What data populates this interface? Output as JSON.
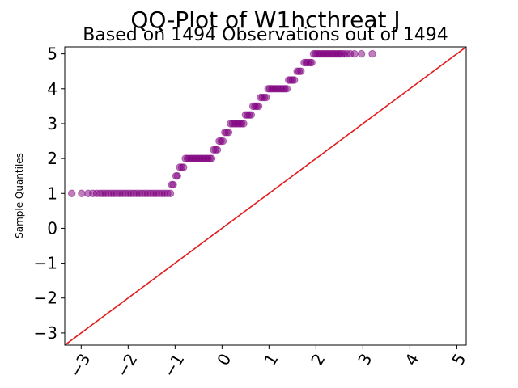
{
  "chart_data": {
    "type": "scatter",
    "title": "QQ-Plot of W1hcthreat J",
    "subtitle": "Based on 1494 Observations out of 1494",
    "xlabel": "",
    "ylabel": "Sample Quantiles",
    "xlim": [
      -3.35,
      5.2
    ],
    "ylim": [
      -3.35,
      5.2
    ],
    "xticks": [
      -3,
      -2,
      -1,
      0,
      1,
      2,
      3,
      4,
      5
    ],
    "xtick_labels": [
      "−3",
      "−2",
      "−1",
      "0",
      "1",
      "2",
      "3",
      "4",
      "5"
    ],
    "yticks": [
      -3,
      -2,
      -1,
      0,
      1,
      2,
      3,
      4,
      5
    ],
    "ytick_labels": [
      "−3",
      "−2",
      "−1",
      "0",
      "1",
      "2",
      "3",
      "4",
      "5"
    ],
    "grid": false,
    "marker_color": "#800080",
    "reference_line": {
      "x": [
        -3.35,
        5.2
      ],
      "y": [
        -3.35,
        5.2
      ],
      "color": "#e41a1c"
    },
    "points_x": [
      -3.2,
      -2.99,
      -2.85,
      -2.75,
      -2.67,
      -2.6,
      -2.54,
      -2.48,
      -2.42,
      -2.36,
      -2.3,
      -2.24,
      -2.18,
      -2.12,
      -2.06,
      -2.0,
      -1.94,
      -1.88,
      -1.82,
      -1.76,
      -1.7,
      -1.64,
      -1.58,
      -1.52,
      -1.46,
      -1.4,
      -1.34,
      -1.28,
      -1.22,
      -1.16,
      -1.1,
      -1.07,
      -1.04,
      -0.98,
      -0.95,
      -0.9,
      -0.86,
      -0.82,
      -0.78,
      -0.74,
      -0.7,
      -0.66,
      -0.62,
      -0.58,
      -0.54,
      -0.5,
      -0.46,
      -0.42,
      -0.38,
      -0.34,
      -0.3,
      -0.26,
      -0.22,
      -0.18,
      -0.14,
      -0.1,
      -0.06,
      -0.02,
      0.02,
      0.06,
      0.1,
      0.14,
      0.18,
      0.22,
      0.26,
      0.3,
      0.34,
      0.38,
      0.42,
      0.46,
      0.5,
      0.54,
      0.58,
      0.62,
      0.66,
      0.7,
      0.74,
      0.78,
      0.82,
      0.86,
      0.9,
      0.94,
      0.98,
      1.02,
      1.06,
      1.1,
      1.14,
      1.18,
      1.22,
      1.26,
      1.3,
      1.34,
      1.38,
      1.42,
      1.46,
      1.5,
      1.54,
      1.6,
      1.64,
      1.68,
      1.75,
      1.79,
      1.83,
      1.88,
      1.91,
      1.95,
      1.99,
      2.03,
      2.07,
      2.11,
      2.15,
      2.19,
      2.23,
      2.27,
      2.31,
      2.35,
      2.39,
      2.43,
      2.47,
      2.51,
      2.55,
      2.6,
      2.66,
      2.73,
      2.82,
      2.97,
      3.2
    ],
    "points_y": [
      1,
      1,
      1,
      1,
      1,
      1,
      1,
      1,
      1,
      1,
      1,
      1,
      1,
      1,
      1,
      1,
      1,
      1,
      1,
      1,
      1,
      1,
      1,
      1,
      1,
      1,
      1,
      1,
      1,
      1,
      1,
      1.25,
      1.25,
      1.5,
      1.5,
      1.75,
      1.75,
      1.75,
      2,
      2,
      2,
      2,
      2,
      2,
      2,
      2,
      2,
      2,
      2,
      2,
      2,
      2,
      2,
      2.25,
      2.25,
      2.25,
      2.5,
      2.5,
      2.5,
      2.75,
      2.75,
      2.75,
      3,
      3,
      3,
      3,
      3,
      3,
      3,
      3,
      3.25,
      3.25,
      3.25,
      3.25,
      3.5,
      3.5,
      3.5,
      3.5,
      3.75,
      3.75,
      3.75,
      3.75,
      4,
      4,
      4,
      4,
      4,
      4,
      4,
      4,
      4,
      4,
      4,
      4.25,
      4.25,
      4.25,
      4.25,
      4.5,
      4.5,
      4.5,
      4.75,
      4.75,
      4.75,
      4.75,
      4.75,
      5,
      5,
      5,
      5,
      5,
      5,
      5,
      5,
      5,
      5,
      5,
      5,
      5,
      5,
      5,
      5,
      5,
      5,
      5,
      5,
      5,
      5
    ]
  }
}
